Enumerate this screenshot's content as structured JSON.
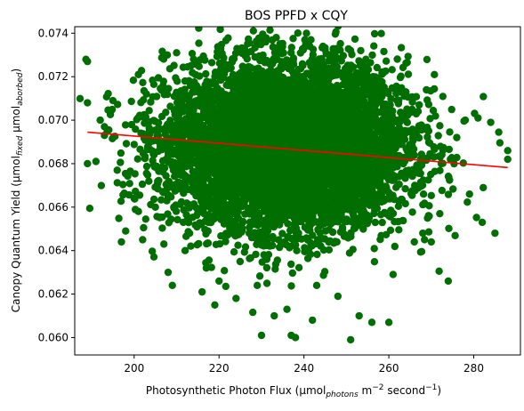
{
  "chart_data": {
    "type": "scatter",
    "title": "BOS PPFD x CQY",
    "xlabel": {
      "parts": [
        {
          "text": "Photosynthetic Photon Flux (µmol"
        },
        {
          "text": "photons",
          "style": "sub"
        },
        {
          "text": " m"
        },
        {
          "text": "−2",
          "style": "sup"
        },
        {
          "text": " second"
        },
        {
          "text": "−1",
          "style": "sup"
        },
        {
          "text": ")"
        }
      ]
    },
    "ylabel": {
      "parts": [
        {
          "text": "Canopy Quantum Yield (µmol"
        },
        {
          "text": "fixed",
          "style": "sub"
        },
        {
          "text": " µmol"
        },
        {
          "text": "aborbed",
          "style": "sub"
        },
        {
          "text": ")"
        }
      ]
    },
    "xlim": [
      186,
      291
    ],
    "ylim": [
      0.0592,
      0.0743
    ],
    "xticks": [
      200,
      220,
      240,
      260,
      280
    ],
    "xtick_labels": [
      "200",
      "220",
      "240",
      "260",
      "280"
    ],
    "yticks": [
      0.06,
      0.062,
      0.064,
      0.066,
      0.068,
      0.07,
      0.072,
      0.074
    ],
    "ytick_labels": [
      "0.060",
      "0.062",
      "0.064",
      "0.066",
      "0.068",
      "0.070",
      "0.072",
      "0.074"
    ],
    "grid": false,
    "marker_color": "#006e00",
    "trend_color": "#ff0000",
    "trend_line": {
      "x": [
        189,
        288
      ],
      "y": [
        0.06945,
        0.06782
      ]
    },
    "cluster": {
      "n_points": 9000,
      "x_mean": 236,
      "x_std": 14,
      "y_mean": 0.0688,
      "y_std": 0.0019
    },
    "points": [
      {
        "x": 189,
        "y": 0.0727
      },
      {
        "x": 189,
        "y": 0.0708
      },
      {
        "x": 189,
        "y": 0.068
      },
      {
        "x": 191,
        "y": 0.0681
      },
      {
        "x": 192,
        "y": 0.07
      },
      {
        "x": 193,
        "y": 0.0697
      },
      {
        "x": 195,
        "y": 0.0709
      },
      {
        "x": 196,
        "y": 0.0677
      },
      {
        "x": 197,
        "y": 0.0644
      },
      {
        "x": 198,
        "y": 0.0649
      },
      {
        "x": 200,
        "y": 0.0664
      },
      {
        "x": 201,
        "y": 0.0658
      },
      {
        "x": 201,
        "y": 0.0721
      },
      {
        "x": 202,
        "y": 0.0645
      },
      {
        "x": 205,
        "y": 0.066
      },
      {
        "x": 207,
        "y": 0.0643
      },
      {
        "x": 208,
        "y": 0.063
      },
      {
        "x": 209,
        "y": 0.0624
      },
      {
        "x": 210,
        "y": 0.0731
      },
      {
        "x": 212,
        "y": 0.064
      },
      {
        "x": 214,
        "y": 0.0728
      },
      {
        "x": 216,
        "y": 0.0621
      },
      {
        "x": 217,
        "y": 0.0632
      },
      {
        "x": 219,
        "y": 0.0615
      },
      {
        "x": 220,
        "y": 0.0626
      },
      {
        "x": 224,
        "y": 0.0618
      },
      {
        "x": 226,
        "y": 0.0733
      },
      {
        "x": 229,
        "y": 0.0624
      },
      {
        "x": 230,
        "y": 0.0601
      },
      {
        "x": 231,
        "y": 0.0736
      },
      {
        "x": 233,
        "y": 0.061
      },
      {
        "x": 236,
        "y": 0.0613
      },
      {
        "x": 237,
        "y": 0.0601
      },
      {
        "x": 238,
        "y": 0.06
      },
      {
        "x": 242,
        "y": 0.0608
      },
      {
        "x": 243,
        "y": 0.0624
      },
      {
        "x": 246,
        "y": 0.0722
      },
      {
        "x": 248,
        "y": 0.0619
      },
      {
        "x": 251,
        "y": 0.0599
      },
      {
        "x": 251,
        "y": 0.0732
      },
      {
        "x": 253,
        "y": 0.061
      },
      {
        "x": 256,
        "y": 0.0607
      },
      {
        "x": 260,
        "y": 0.0607
      },
      {
        "x": 261,
        "y": 0.0629
      },
      {
        "x": 264,
        "y": 0.0713
      },
      {
        "x": 266,
        "y": 0.0644
      },
      {
        "x": 268,
        "y": 0.0648
      },
      {
        "x": 270,
        "y": 0.0644
      },
      {
        "x": 272,
        "y": 0.0657
      },
      {
        "x": 274,
        "y": 0.0626
      },
      {
        "x": 276,
        "y": 0.0692
      },
      {
        "x": 278,
        "y": 0.07
      },
      {
        "x": 279,
        "y": 0.0666
      },
      {
        "x": 281,
        "y": 0.0701
      },
      {
        "x": 282,
        "y": 0.0653
      },
      {
        "x": 284,
        "y": 0.0699
      },
      {
        "x": 285,
        "y": 0.0648
      },
      {
        "x": 288,
        "y": 0.0686
      },
      {
        "x": 288,
        "y": 0.0682
      }
    ]
  }
}
